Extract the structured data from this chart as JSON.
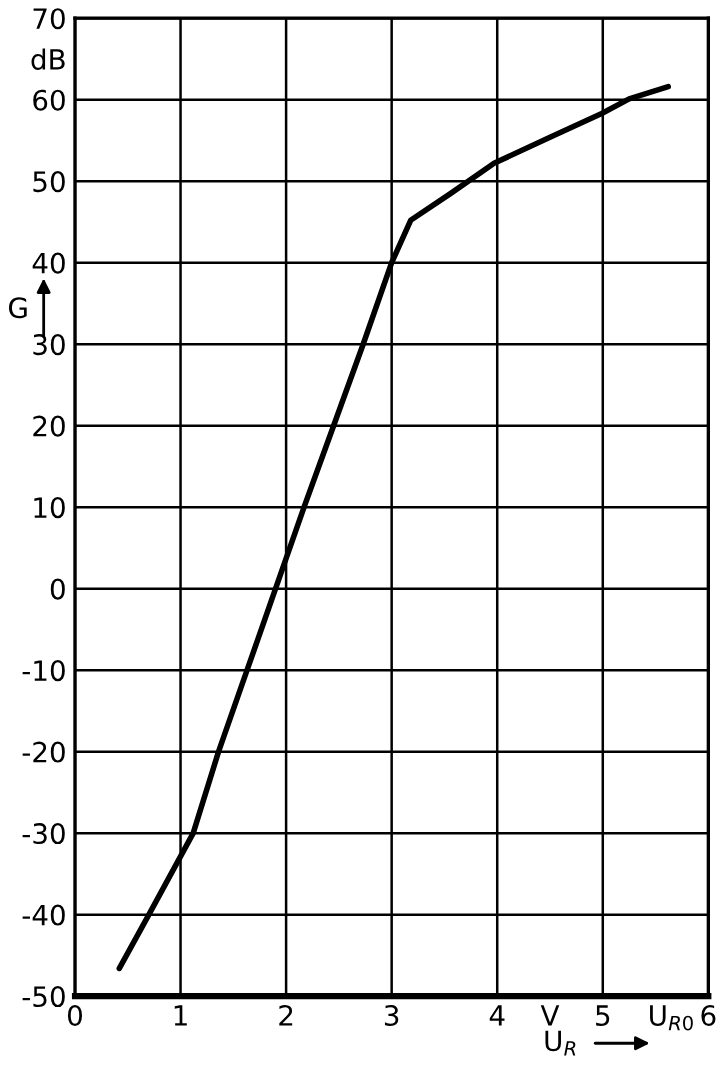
{
  "chart_data": {
    "type": "line",
    "xlabel": "U$_{R}$",
    "ylabel": "G",
    "x": [
      0.42,
      0.7,
      1.12,
      1.36,
      1.63,
      1.9,
      2.17,
      2.45,
      2.73,
      3.0,
      3.18,
      3.56,
      3.97,
      4.5,
      4.99,
      5.25,
      5.62
    ],
    "series": [
      {
        "color": "#000000",
        "values": [
          -46.6,
          -40,
          -30,
          -20,
          -10,
          0,
          10,
          20,
          30,
          40,
          45.2,
          48.5,
          52.2,
          55.4,
          58.3,
          60.1,
          61.6
        ]
      }
    ],
    "xlim": [
      0,
      6
    ],
    "ylim": [
      -50,
      70
    ],
    "xticks": [
      0,
      1,
      2,
      3,
      4,
      {
        "value": 4.5,
        "label": "V"
      },
      5,
      {
        "value": 5.65,
        "label": "U$_{R0}$"
      },
      6
    ],
    "yticks": [
      -50,
      -40,
      -30,
      -20,
      -10,
      0,
      10,
      20,
      30,
      40,
      50,
      60,
      {
        "value": 65,
        "label": "dB"
      },
      70
    ],
    "grid": true,
    "marker": "none",
    "line_style": "solid"
  }
}
